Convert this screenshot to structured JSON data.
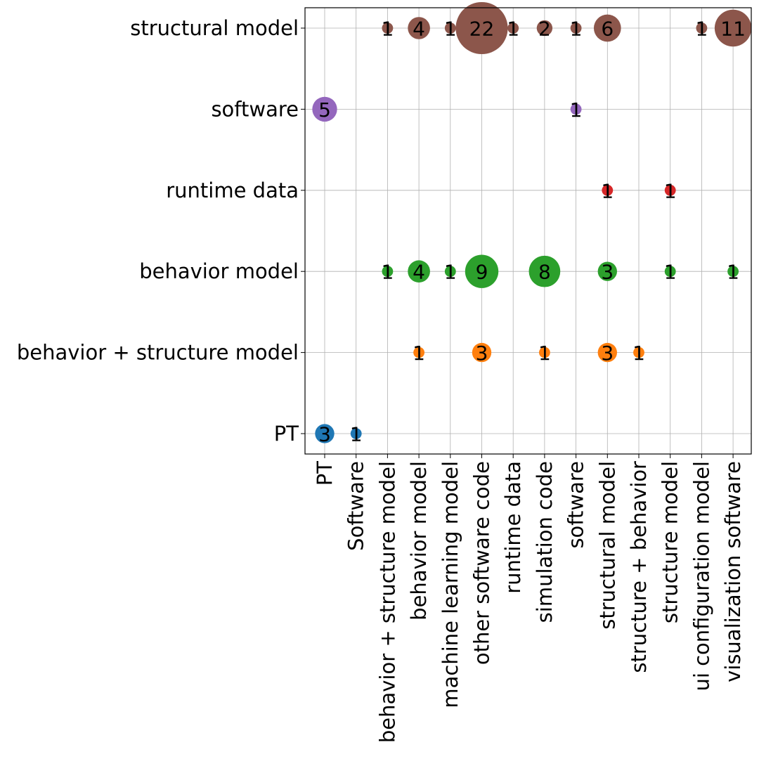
{
  "chart_data": {
    "type": "scatter",
    "title": "",
    "xlabel": "",
    "ylabel": "",
    "grid": true,
    "x_categories": [
      "PT",
      "Software",
      "behavior + structure model",
      "behavior model",
      "machine learning model",
      "other software code",
      "runtime data",
      "simulation code",
      "software",
      "structural model",
      "structure + behavior",
      "structure model",
      "ui configuration model",
      "visualization software"
    ],
    "y_categories": [
      "PT",
      "behavior + structure model",
      "behavior model",
      "runtime data",
      "software",
      "structural model"
    ],
    "row_colors": {
      "PT": "#1f77b4",
      "behavior + structure model": "#ff7f0e",
      "behavior model": "#2ca02c",
      "runtime data": "#d62728",
      "software": "#9467bd",
      "structural model": "#8c564b"
    },
    "points": [
      {
        "x": "PT",
        "y": "PT",
        "count": 3,
        "label": "3"
      },
      {
        "x": "Software",
        "y": "PT",
        "count": 1,
        "label": "1"
      },
      {
        "x": "behavior model",
        "y": "behavior + structure model",
        "count": 1,
        "label": "1"
      },
      {
        "x": "other software code",
        "y": "behavior + structure model",
        "count": 3,
        "label": "3"
      },
      {
        "x": "simulation code",
        "y": "behavior + structure model",
        "count": 1,
        "label": "1"
      },
      {
        "x": "structural model",
        "y": "behavior + structure model",
        "count": 3,
        "label": "3"
      },
      {
        "x": "structure + behavior",
        "y": "behavior + structure model",
        "count": 1,
        "label": "1"
      },
      {
        "x": "behavior + structure model",
        "y": "behavior model",
        "count": 1,
        "label": "1"
      },
      {
        "x": "behavior model",
        "y": "behavior model",
        "count": 4,
        "label": "4"
      },
      {
        "x": "machine learning model",
        "y": "behavior model",
        "count": 1,
        "label": "1"
      },
      {
        "x": "other software code",
        "y": "behavior model",
        "count": 9,
        "label": "9"
      },
      {
        "x": "simulation code",
        "y": "behavior model",
        "count": 8,
        "label": "8"
      },
      {
        "x": "structural model",
        "y": "behavior model",
        "count": 3,
        "label": "3"
      },
      {
        "x": "structure model",
        "y": "behavior model",
        "count": 1,
        "label": "1"
      },
      {
        "x": "visualization software",
        "y": "behavior model",
        "count": 1,
        "label": "1"
      },
      {
        "x": "structural model",
        "y": "runtime data",
        "count": 1,
        "label": "1"
      },
      {
        "x": "structure model",
        "y": "runtime data",
        "count": 1,
        "label": "1"
      },
      {
        "x": "PT",
        "y": "software",
        "count": 5,
        "label": "5"
      },
      {
        "x": "software",
        "y": "software",
        "count": 1,
        "label": "1"
      },
      {
        "x": "behavior + structure model",
        "y": "structural model",
        "count": 1,
        "label": "1"
      },
      {
        "x": "behavior model",
        "y": "structural model",
        "count": 4,
        "label": "4"
      },
      {
        "x": "machine learning model",
        "y": "structural model",
        "count": 1,
        "label": "1"
      },
      {
        "x": "other software code",
        "y": "structural model",
        "count": 22,
        "label": "22"
      },
      {
        "x": "runtime data",
        "y": "structural model",
        "count": 1,
        "label": "1"
      },
      {
        "x": "simulation code",
        "y": "structural model",
        "count": 2,
        "label": "2"
      },
      {
        "x": "software",
        "y": "structural model",
        "count": 1,
        "label": "1"
      },
      {
        "x": "structural model",
        "y": "structural model",
        "count": 6,
        "label": "6"
      },
      {
        "x": "ui configuration model",
        "y": "structural model",
        "count": 1,
        "label": "1"
      },
      {
        "x": "visualization software",
        "y": "structural model",
        "count": 11,
        "label": "11"
      }
    ]
  }
}
